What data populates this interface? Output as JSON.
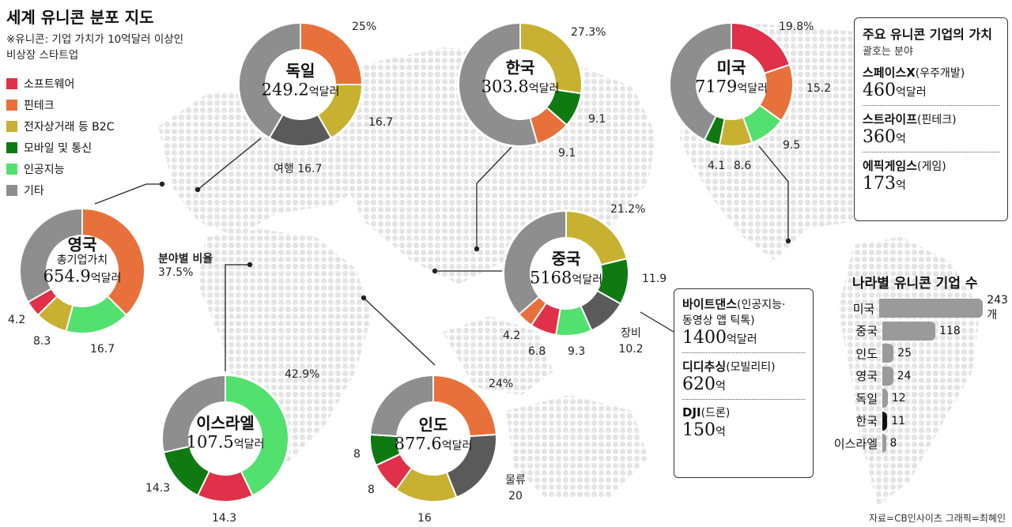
{
  "title": "세계 유니콘 분포 지도",
  "note_lines": [
    "※유니콘: 기업 가치가 10억달러 이상인",
    "비상장 스타트업"
  ],
  "colors": {
    "software": "#e0304a",
    "fintech": "#e8703a",
    "ecommerce": "#c8b030",
    "mobile": "#0f7a12",
    "ai": "#52e06e",
    "etc": "#8e8e8e",
    "travel": "#5a5a5a",
    "logistics": "#5a5a5a",
    "equipment": "#5a5a5a"
  },
  "legend": [
    {
      "label": "소프트웨어",
      "key": "software"
    },
    {
      "label": "핀테크",
      "key": "fintech"
    },
    {
      "label": "전자상거래 등 B2C",
      "key": "ecommerce"
    },
    {
      "label": "모바일 및 통신",
      "key": "mobile"
    },
    {
      "label": "인공지능",
      "key": "ai"
    },
    {
      "label": "기타",
      "key": "etc"
    }
  ],
  "chart_data": [
    {
      "type": "pie",
      "name": "독일",
      "total": "249.2",
      "unit": "억달러",
      "slices": [
        {
          "key": "fintech",
          "value": 25,
          "label": "25%"
        },
        {
          "key": "ecommerce",
          "value": 16.7,
          "label": "16.7"
        },
        {
          "key": "travel",
          "value": 16.7,
          "label": "여행 16.7"
        },
        {
          "key": "etc",
          "value": 41.6,
          "label": ""
        }
      ]
    },
    {
      "type": "pie",
      "name": "한국",
      "total": "303.8",
      "unit": "억달러",
      "slices": [
        {
          "key": "ecommerce",
          "value": 27.3,
          "label": "27.3%"
        },
        {
          "key": "mobile",
          "value": 9.1,
          "label": "9.1"
        },
        {
          "key": "fintech",
          "value": 9.1,
          "label": "9.1"
        },
        {
          "key": "etc",
          "value": 54.5,
          "label": ""
        }
      ]
    },
    {
      "type": "pie",
      "name": "미국",
      "total": "7179",
      "unit": "억달러",
      "slices": [
        {
          "key": "software",
          "value": 19.8,
          "label": "19.8%"
        },
        {
          "key": "fintech",
          "value": 15.2,
          "label": "15.2"
        },
        {
          "key": "ai",
          "value": 9.5,
          "label": "9.5"
        },
        {
          "key": "ecommerce",
          "value": 8.6,
          "label": "8.6"
        },
        {
          "key": "mobile",
          "value": 4.1,
          "label": "4.1"
        },
        {
          "key": "etc",
          "value": 42.8,
          "label": ""
        }
      ]
    },
    {
      "type": "pie",
      "name": "영국",
      "subtitle": "총기업가치",
      "total": "654.9",
      "unit": "억달러",
      "slices": [
        {
          "key": "fintech",
          "value": 37.5,
          "label": "37.5%"
        },
        {
          "key": "ai",
          "value": 16.7,
          "label": "16.7"
        },
        {
          "key": "ecommerce",
          "value": 8.3,
          "label": "8.3"
        },
        {
          "key": "software",
          "value": 4.2,
          "label": "4.2"
        },
        {
          "key": "etc",
          "value": 33.3,
          "label": ""
        }
      ]
    },
    {
      "type": "pie",
      "name": "중국",
      "total": "5168",
      "unit": "억달러",
      "slices": [
        {
          "key": "ecommerce",
          "value": 21.2,
          "label": "21.2%"
        },
        {
          "key": "mobile",
          "value": 11.9,
          "label": "11.9"
        },
        {
          "key": "equipment",
          "value": 10.2,
          "label": "장비 10.2"
        },
        {
          "key": "ai",
          "value": 9.3,
          "label": "9.3"
        },
        {
          "key": "software",
          "value": 6.8,
          "label": "6.8"
        },
        {
          "key": "fintech",
          "value": 4.2,
          "label": "4.2"
        },
        {
          "key": "etc",
          "value": 36.4,
          "label": ""
        }
      ]
    },
    {
      "type": "pie",
      "name": "이스라엘",
      "total": "107.5",
      "unit": "억달러",
      "slices": [
        {
          "key": "ai",
          "value": 42.9,
          "label": "42.9%"
        },
        {
          "key": "software",
          "value": 14.3,
          "label": "14.3"
        },
        {
          "key": "mobile",
          "value": 14.3,
          "label": "14.3"
        },
        {
          "key": "etc",
          "value": 28.5,
          "label": ""
        }
      ]
    },
    {
      "type": "pie",
      "name": "인도",
      "total": "877.6",
      "unit": "억달러",
      "slices": [
        {
          "key": "fintech",
          "value": 24,
          "label": "24%"
        },
        {
          "key": "logistics",
          "value": 20,
          "label": "물류 20"
        },
        {
          "key": "ecommerce",
          "value": 16,
          "label": "16"
        },
        {
          "key": "software",
          "value": 8,
          "label": "8"
        },
        {
          "key": "mobile",
          "value": 8,
          "label": "8"
        },
        {
          "key": "etc",
          "value": 24,
          "label": ""
        }
      ]
    },
    {
      "type": "bar",
      "title": "나라별 유니콘 기업 수",
      "categories": [
        "미국",
        "중국",
        "인도",
        "영국",
        "독일",
        "한국",
        "이스라엘"
      ],
      "values": [
        243,
        118,
        25,
        24,
        12,
        11,
        8
      ],
      "labels": [
        "243개",
        "118",
        "25",
        "24",
        "12",
        "11",
        "8"
      ]
    }
  ],
  "uk_annotation": "분야별 비율",
  "us_box": {
    "title": "주요 유니콘 기업의 가치",
    "subtitle": "괄호는 분야",
    "companies": [
      {
        "name": "스페이스X",
        "field": "(우주개발)",
        "value": "460",
        "unit": "억달러"
      },
      {
        "name": "스트라이프",
        "field": "(핀테크)",
        "value": "360",
        "unit": "억"
      },
      {
        "name": "에픽게임스",
        "field": "(게임)",
        "value": "173",
        "unit": "억"
      }
    ]
  },
  "cn_box": {
    "companies": [
      {
        "name": "바이트댄스",
        "field": "(인공지능·",
        "field2": "동영상 앱 틱톡)",
        "value": "1400",
        "unit": "억달러"
      },
      {
        "name": "디디추싱",
        "field": "(모빌리티)",
        "value": "620",
        "unit": "억"
      },
      {
        "name": "DJI",
        "field": "(드론)",
        "value": "150",
        "unit": "억"
      }
    ]
  },
  "source": "자료=CB인사이츠  그래픽=최혜인"
}
